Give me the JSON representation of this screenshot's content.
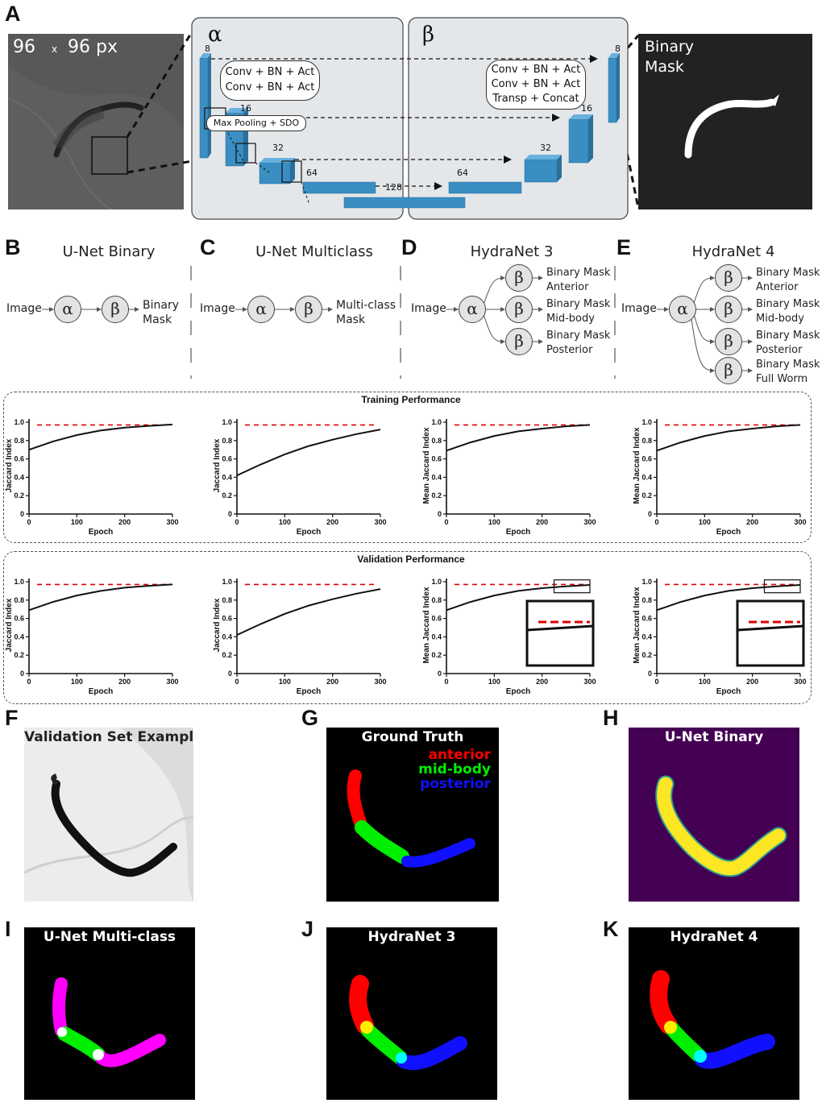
{
  "panels": {
    "A": "A",
    "B": "B",
    "C": "C",
    "D": "D",
    "E": "E",
    "F": "F",
    "G": "G",
    "H": "H",
    "I": "I",
    "J": "J",
    "K": "K"
  },
  "panel_a": {
    "input_size": "96",
    "times": "x",
    "input_size2": "96 px",
    "alpha": "α",
    "beta": "β",
    "encoder_box": [
      "Conv + BN + Act",
      "Conv + BN + Act"
    ],
    "decoder_box": [
      "Conv + BN + Act",
      "Conv + BN + Act",
      "Transp + Concat"
    ],
    "pool_label": "Max Pooling + SDO",
    "channels": [
      "8",
      "16",
      "32",
      "64",
      "128",
      "64",
      "32",
      "16",
      "8"
    ],
    "output_label": [
      "Binary",
      "Mask"
    ]
  },
  "flows": {
    "image": "Image",
    "alpha": "α",
    "beta": "β",
    "b": {
      "title": "U-Net Binary",
      "out": [
        "Binary",
        "Mask"
      ]
    },
    "c": {
      "title": "U-Net Multiclass",
      "out": [
        "Multi-class",
        "Mask"
      ]
    },
    "d": {
      "title": "HydraNet 3",
      "heads": [
        [
          "Binary Mask",
          "Anterior"
        ],
        [
          "Binary Mask",
          "Mid-body"
        ],
        [
          "Binary Mask",
          "Posterior"
        ]
      ]
    },
    "e": {
      "title": "HydraNet 4",
      "heads": [
        [
          "Binary Mask",
          "Anterior"
        ],
        [
          "Binary Mask",
          "Mid-body"
        ],
        [
          "Binary Mask",
          "Posterior"
        ],
        [
          "Binary Mask",
          "Full Worm"
        ]
      ]
    }
  },
  "sections": {
    "training": "Training Performance",
    "validation": "Validation Performance"
  },
  "chart_data": [
    {
      "type": "line",
      "id": "train-unet-binary",
      "xlabel": "Epoch",
      "ylabel": "Jaccard Index",
      "xlim": [
        0,
        300
      ],
      "ylim": [
        0,
        1.0
      ],
      "xticks": [
        "0",
        "100",
        "200",
        "300"
      ],
      "yticks": [
        "0",
        "0.2",
        "0.4",
        "0.6",
        "0.8",
        "1.0"
      ],
      "reference": 0.97,
      "x": [
        0,
        50,
        100,
        150,
        200,
        250,
        300
      ],
      "y": [
        0.7,
        0.79,
        0.86,
        0.91,
        0.94,
        0.96,
        0.975
      ]
    },
    {
      "type": "line",
      "id": "train-unet-multiclass",
      "xlabel": "Epoch",
      "ylabel": "Jaccard Index",
      "xlim": [
        0,
        300
      ],
      "ylim": [
        0,
        1.0
      ],
      "xticks": [
        "0",
        "100",
        "200",
        "300"
      ],
      "yticks": [
        "0",
        "0.2",
        "0.4",
        "0.6",
        "0.8",
        "1.0"
      ],
      "reference": 0.97,
      "x": [
        0,
        50,
        100,
        150,
        200,
        250,
        300
      ],
      "y": [
        0.42,
        0.54,
        0.65,
        0.74,
        0.81,
        0.87,
        0.92
      ]
    },
    {
      "type": "line",
      "id": "train-hydranet3",
      "xlabel": "Epoch",
      "ylabel": "Mean Jaccard Index",
      "xlim": [
        0,
        300
      ],
      "ylim": [
        0,
        1.0
      ],
      "xticks": [
        "0",
        "100",
        "200",
        "300"
      ],
      "yticks": [
        "0",
        "0.2",
        "0.4",
        "0.6",
        "0.8",
        "1.0"
      ],
      "reference": 0.97,
      "x": [
        0,
        50,
        100,
        150,
        200,
        250,
        300
      ],
      "y": [
        0.69,
        0.78,
        0.85,
        0.9,
        0.93,
        0.955,
        0.97
      ]
    },
    {
      "type": "line",
      "id": "train-hydranet4",
      "xlabel": "Epoch",
      "ylabel": "Mean Jaccard Index",
      "xlim": [
        0,
        300
      ],
      "ylim": [
        0,
        1.0
      ],
      "xticks": [
        "0",
        "100",
        "200",
        "300"
      ],
      "yticks": [
        "0",
        "0.2",
        "0.4",
        "0.6",
        "0.8",
        "1.0"
      ],
      "reference": 0.97,
      "x": [
        0,
        50,
        100,
        150,
        200,
        250,
        300
      ],
      "y": [
        0.69,
        0.78,
        0.85,
        0.9,
        0.93,
        0.955,
        0.97
      ]
    },
    {
      "type": "line",
      "id": "val-unet-binary",
      "xlabel": "Epoch",
      "ylabel": "Jaccard Index",
      "xlim": [
        0,
        300
      ],
      "ylim": [
        0,
        1.0
      ],
      "xticks": [
        "0",
        "100",
        "200",
        "300"
      ],
      "yticks": [
        "0",
        "0.2",
        "0.4",
        "0.6",
        "0.8",
        "1.0"
      ],
      "reference": 0.97,
      "x": [
        0,
        50,
        100,
        150,
        200,
        250,
        300
      ],
      "y": [
        0.69,
        0.78,
        0.85,
        0.9,
        0.935,
        0.955,
        0.97
      ]
    },
    {
      "type": "line",
      "id": "val-unet-multiclass",
      "xlabel": "Epoch",
      "ylabel": "Jaccard Index",
      "xlim": [
        0,
        300
      ],
      "ylim": [
        0,
        1.0
      ],
      "xticks": [
        "0",
        "100",
        "200",
        "300"
      ],
      "yticks": [
        "0",
        "0.2",
        "0.4",
        "0.6",
        "0.8",
        "1.0"
      ],
      "reference": 0.97,
      "x": [
        0,
        50,
        100,
        150,
        200,
        250,
        300
      ],
      "y": [
        0.42,
        0.54,
        0.65,
        0.74,
        0.81,
        0.87,
        0.92
      ]
    },
    {
      "type": "line",
      "id": "val-hydranet3",
      "xlabel": "Epoch",
      "ylabel": "Mean Jaccard Index",
      "xlim": [
        0,
        300
      ],
      "ylim": [
        0,
        1.0
      ],
      "xticks": [
        "0",
        "100",
        "200",
        "300"
      ],
      "yticks": [
        "0",
        "0.2",
        "0.4",
        "0.6",
        "0.8",
        "1.0"
      ],
      "reference": 0.97,
      "inset": true,
      "x": [
        0,
        50,
        100,
        150,
        200,
        250,
        300
      ],
      "y": [
        0.69,
        0.78,
        0.85,
        0.9,
        0.93,
        0.95,
        0.965
      ]
    },
    {
      "type": "line",
      "id": "val-hydranet4",
      "xlabel": "Epoch",
      "ylabel": "Mean Jaccard Index",
      "xlim": [
        0,
        300
      ],
      "ylim": [
        0,
        1.0
      ],
      "xticks": [
        "0",
        "100",
        "200",
        "300"
      ],
      "yticks": [
        "0",
        "0.2",
        "0.4",
        "0.6",
        "0.8",
        "1.0"
      ],
      "reference": 0.97,
      "inset": true,
      "x": [
        0,
        50,
        100,
        150,
        200,
        250,
        300
      ],
      "y": [
        0.69,
        0.78,
        0.85,
        0.9,
        0.93,
        0.95,
        0.965
      ]
    }
  ],
  "images": {
    "f": "Validation Set Example",
    "g": "Ground Truth",
    "g_legend": [
      "anterior",
      "mid-body",
      "posterior"
    ],
    "h": "U-Net Binary",
    "i": "U-Net Multi-class",
    "j": "HydraNet 3",
    "k": "HydraNet 4"
  },
  "colors": {
    "anterior": "#ff0000",
    "midbody": "#00ee00",
    "posterior": "#1010ff",
    "magenta": "#ff00ff",
    "yellow": "#ffee00",
    "cyan": "#00ffff",
    "purple": "#440154",
    "viridis_yellow": "#fde725",
    "reference": "#e00000",
    "block": "#3a8ec2"
  }
}
